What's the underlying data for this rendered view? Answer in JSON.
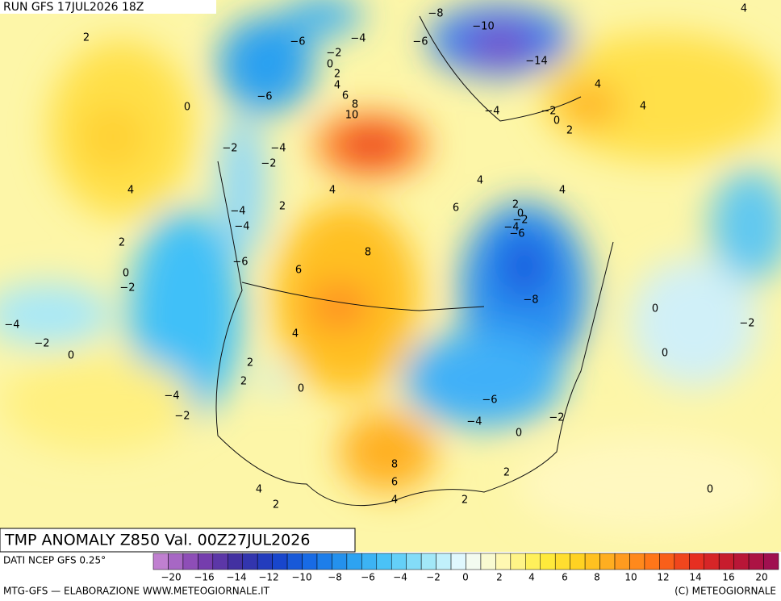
{
  "header": {
    "run": "RUN GFS 17JUL2026 18Z"
  },
  "map": {
    "title": "TMP ANOMALY Z850 Val. 00Z27JUL2026",
    "contour_labels": [
      "4",
      "−8",
      "2",
      "−6",
      "−4",
      "−10",
      "−6",
      "−2",
      "0",
      "−14",
      "2",
      "4",
      "4",
      "4",
      "−6",
      "0",
      "6",
      "8",
      "10",
      "−4",
      "−2",
      "0",
      "2",
      "−2",
      "−4",
      "−2",
      "4",
      "4",
      "4",
      "4",
      "2",
      "6",
      "2",
      "0",
      "−2",
      "−4",
      "−6",
      "−4",
      "−4",
      "2",
      "8",
      "−6",
      "6",
      "0",
      "−2",
      "−8",
      "0",
      "−4",
      "−2",
      "4",
      "−2",
      "0",
      "0",
      "2",
      "2",
      "0",
      "−4",
      "−6",
      "−2",
      "−4",
      "−2",
      "0",
      "8",
      "2",
      "6",
      "4",
      "0",
      "4",
      "2",
      "2"
    ]
  },
  "legend": {
    "source": "DATI NCEP GFS 0.25°",
    "ticks": [
      "−20",
      "−16",
      "−14",
      "−12",
      "−10",
      "−8",
      "−6",
      "−4",
      "−2",
      "0",
      "2",
      "4",
      "6",
      "8",
      "10",
      "12",
      "14",
      "16",
      "20"
    ]
  },
  "footer": {
    "left": "MTG-GFS — ELABORAZIONE WWW.METEOGIORNALE.IT",
    "right": "(C) METEOGIORNALE"
  }
}
